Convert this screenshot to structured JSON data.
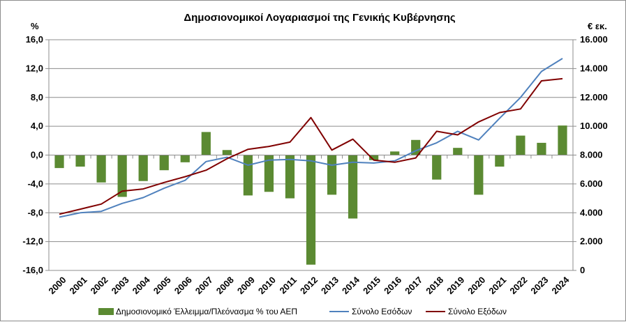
{
  "chart_data": {
    "type": "bar+line",
    "title": "Δημοσιονομικοί  Λογαριασμοί της Γενικής Κυβέρνησης",
    "left_axis_unit": "%",
    "right_axis_unit": "€ εκ.",
    "categories": [
      "2000",
      "2001",
      "2002",
      "2003",
      "2004",
      "2005",
      "2006",
      "2007",
      "2008",
      "2009",
      "2010",
      "2011",
      "2012",
      "2013",
      "2014",
      "2015",
      "2016",
      "2017",
      "2018",
      "2019",
      "2020",
      "2021",
      "2022",
      "2023",
      "2024"
    ],
    "left_ticks": [
      "16,0",
      "12,0",
      "8,0",
      "4,0",
      "0,0",
      "-4,0",
      "-8,0",
      "-12,0",
      "-16,0"
    ],
    "right_ticks": [
      "16.000",
      "14.000",
      "12.000",
      "10.000",
      "8.000",
      "6.000",
      "4.000",
      "2.000",
      "0"
    ],
    "ylim_left": [
      -16,
      16
    ],
    "ylim_right": [
      0,
      16000
    ],
    "series": [
      {
        "name": "Δημοσιονομικό Έλλειμμα/Πλεόνασμα % του ΑΕΠ",
        "type": "bar",
        "axis": "left",
        "color": "#5b8a32",
        "values": [
          -1.8,
          -1.6,
          -3.8,
          -5.8,
          -3.6,
          -2.1,
          -1.0,
          3.2,
          0.7,
          -5.6,
          -5.1,
          -6.0,
          -15.2,
          -5.5,
          -8.8,
          -0.7,
          0.5,
          2.1,
          -3.4,
          1.0,
          -5.5,
          -1.6,
          2.7,
          1.7,
          4.1
        ]
      },
      {
        "name": "Σύνολο Εσόδων",
        "type": "line",
        "axis": "right",
        "color": "#4f81bd",
        "values": [
          3700,
          4000,
          4100,
          4650,
          5050,
          5700,
          6250,
          7550,
          7850,
          7300,
          7650,
          7700,
          7600,
          7300,
          7500,
          7450,
          7600,
          8300,
          8850,
          9650,
          9050,
          10550,
          12000,
          13800,
          14700
        ]
      },
      {
        "name": "Σύνολο Εξόδων",
        "type": "line",
        "axis": "right",
        "color": "#800000",
        "values": [
          3900,
          4250,
          4600,
          5500,
          5650,
          6100,
          6500,
          6950,
          7750,
          8400,
          8600,
          8900,
          10600,
          8350,
          9100,
          7650,
          7500,
          7800,
          9650,
          9400,
          10300,
          10950,
          11200,
          13150,
          13300
        ]
      }
    ],
    "legend_position": "bottom",
    "grid": "horizontal"
  }
}
